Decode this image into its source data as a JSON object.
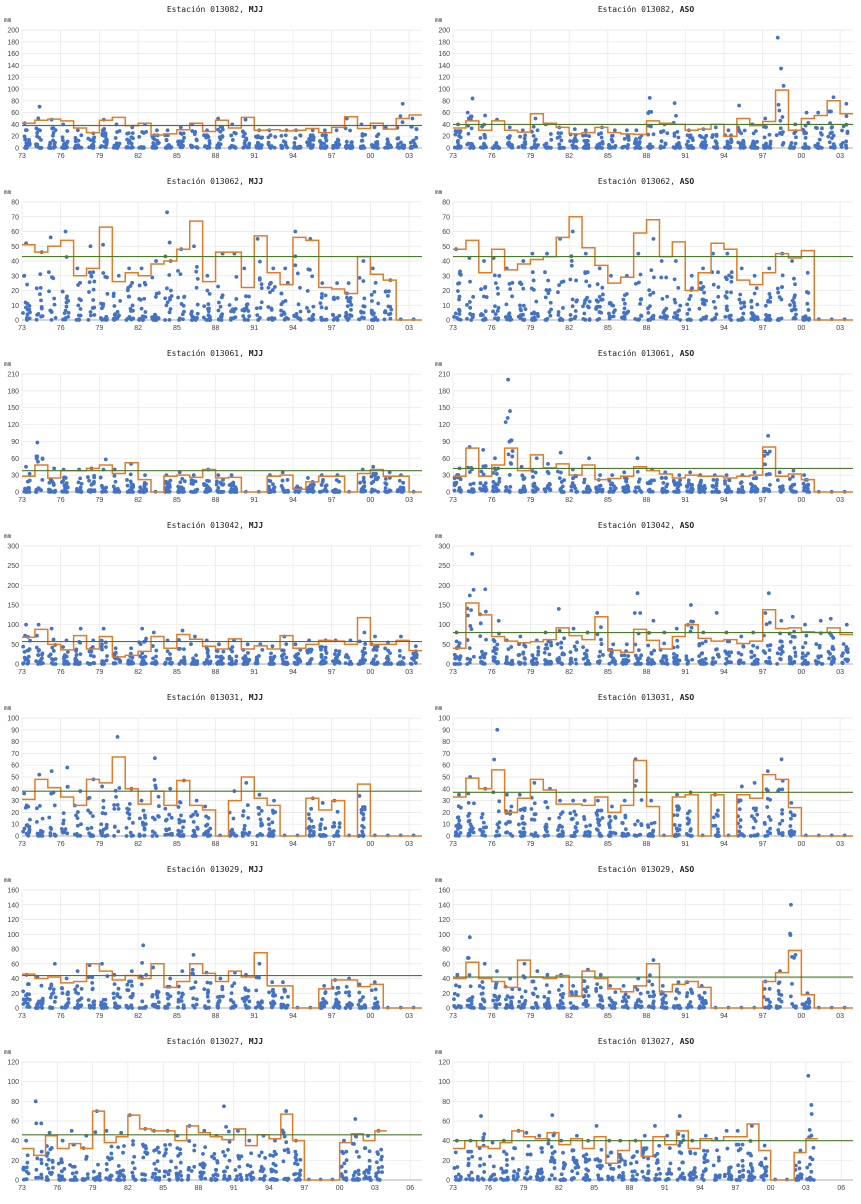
{
  "x_tick_labels": [
    "73",
    "76",
    "79",
    "82",
    "85",
    "88",
    "91",
    "94",
    "97",
    "00",
    "03"
  ],
  "x_tick_labels_extended": [
    "73",
    "76",
    "79",
    "82",
    "85",
    "88",
    "91",
    "94",
    "97",
    "00",
    "03",
    "06"
  ],
  "unit": "mm",
  "colors": {
    "points": "#4472c4",
    "step_line": "#e07b2a",
    "mean_line": "#4a7a2a",
    "grid": "#e6e6e6"
  },
  "chart_data": [
    {
      "type": "scatter",
      "title_prefix": "Estación 013082,",
      "title_season": "MJJ",
      "unit": "mm",
      "ylim": [
        0,
        200
      ],
      "yticks": [
        0,
        20,
        40,
        60,
        80,
        100,
        120,
        140,
        160,
        180,
        200
      ],
      "xlim": [
        1973,
        2004
      ],
      "mean": 38,
      "step_values": [
        42,
        47,
        49,
        46,
        34,
        26,
        47,
        52,
        38,
        42,
        22,
        24,
        31,
        42,
        28,
        47,
        34,
        52,
        30,
        31,
        29,
        30,
        33,
        26,
        35,
        53,
        33,
        42,
        32,
        50,
        56
      ],
      "max_points": [
        42,
        70,
        48,
        40,
        30,
        25,
        48,
        40,
        35,
        40,
        30,
        30,
        35,
        40,
        30,
        50,
        40,
        48,
        30,
        30,
        30,
        30,
        30,
        30,
        30,
        50,
        40,
        35,
        35,
        75,
        50
      ],
      "grid": true
    },
    {
      "type": "scatter",
      "title_prefix": "Estación 013082,",
      "title_season": "ASO",
      "unit": "mm",
      "ylim": [
        0,
        200
      ],
      "yticks": [
        0,
        20,
        40,
        60,
        80,
        100,
        120,
        140,
        160,
        180,
        200
      ],
      "xlim": [
        1973,
        2004
      ],
      "mean": 40,
      "step_values": [
        34,
        46,
        30,
        46,
        30,
        27,
        58,
        42,
        35,
        24,
        26,
        35,
        26,
        24,
        23,
        46,
        42,
        40,
        30,
        32,
        40,
        20,
        50,
        38,
        45,
        98,
        30,
        50,
        55,
        80,
        58
      ],
      "max_points": [
        40,
        84,
        55,
        48,
        35,
        30,
        50,
        40,
        35,
        32,
        30,
        35,
        30,
        30,
        30,
        85,
        40,
        76,
        30,
        32,
        35,
        30,
        72,
        40,
        50,
        187,
        40,
        60,
        60,
        86,
        75
      ],
      "grid": true
    },
    {
      "type": "scatter",
      "title_prefix": "Estación 013062,",
      "title_season": "MJJ",
      "unit": "mm",
      "ylim": [
        0,
        80
      ],
      "yticks": [
        0,
        10,
        20,
        30,
        40,
        50,
        60,
        70,
        80
      ],
      "xlim": [
        1973,
        2004
      ],
      "mean": 43,
      "step_values": [
        51,
        46,
        50,
        54,
        30,
        35,
        63,
        26,
        32,
        30,
        38,
        40,
        48,
        67,
        26,
        46,
        46,
        22,
        57,
        32,
        24,
        56,
        54,
        22,
        21,
        18,
        43,
        31,
        27,
        0,
        0
      ],
      "max_points": [
        52,
        46,
        56,
        60,
        35,
        50,
        51,
        30,
        35,
        35,
        40,
        73,
        48,
        50,
        30,
        45,
        45,
        35,
        55,
        35,
        35,
        60,
        55,
        25,
        25,
        25,
        40,
        35,
        27,
        1,
        1
      ],
      "grid": true
    },
    {
      "type": "scatter",
      "title_prefix": "Estación 013062,",
      "title_season": "ASO",
      "unit": "mm",
      "ylim": [
        0,
        80
      ],
      "yticks": [
        0,
        10,
        20,
        30,
        40,
        50,
        60,
        70,
        80
      ],
      "xlim": [
        1973,
        2004
      ],
      "mean": 43,
      "step_values": [
        48,
        54,
        32,
        48,
        34,
        38,
        41,
        43,
        56,
        70,
        49,
        37,
        25,
        29,
        59,
        68,
        43,
        53,
        20,
        32,
        52,
        48,
        27,
        24,
        32,
        45,
        42,
        47,
        0,
        0,
        0
      ],
      "max_points": [
        48,
        42,
        40,
        42,
        35,
        40,
        45,
        45,
        55,
        60,
        45,
        35,
        30,
        30,
        45,
        55,
        40,
        40,
        30,
        35,
        45,
        45,
        35,
        30,
        35,
        45,
        40,
        32,
        1,
        1,
        1
      ],
      "grid": true
    },
    {
      "type": "scatter",
      "title_prefix": "Estación 013061,",
      "title_season": "MJJ",
      "unit": "mm",
      "ylim": [
        0,
        210
      ],
      "yticks": [
        0,
        30,
        60,
        90,
        120,
        150,
        180,
        210
      ],
      "xlim": [
        1973,
        2004
      ],
      "mean": 38,
      "step_values": [
        28,
        48,
        25,
        38,
        38,
        42,
        48,
        33,
        52,
        22,
        0,
        28,
        30,
        26,
        40,
        25,
        26,
        0,
        0,
        28,
        30,
        5,
        18,
        28,
        28,
        0,
        33,
        40,
        28,
        28,
        0
      ],
      "max_points": [
        45,
        88,
        42,
        40,
        40,
        42,
        58,
        40,
        50,
        30,
        0,
        30,
        35,
        30,
        40,
        30,
        30,
        2,
        2,
        30,
        35,
        10,
        25,
        30,
        30,
        2,
        40,
        45,
        35,
        30,
        2
      ],
      "grid": true
    },
    {
      "type": "scatter",
      "title_prefix": "Estación 013061,",
      "title_season": "ASO",
      "unit": "mm",
      "ylim": [
        0,
        210
      ],
      "yticks": [
        0,
        30,
        60,
        90,
        120,
        150,
        180,
        210
      ],
      "xlim": [
        1973,
        2004
      ],
      "mean": 42,
      "step_values": [
        28,
        78,
        28,
        48,
        78,
        38,
        66,
        43,
        50,
        30,
        48,
        22,
        24,
        28,
        45,
        38,
        32,
        25,
        30,
        28,
        28,
        25,
        28,
        30,
        80,
        28,
        32,
        22,
        0,
        0,
        0
      ],
      "max_points": [
        42,
        80,
        75,
        60,
        200,
        45,
        60,
        50,
        70,
        40,
        60,
        30,
        30,
        35,
        60,
        40,
        35,
        30,
        35,
        30,
        30,
        30,
        30,
        35,
        100,
        35,
        38,
        30,
        2,
        2,
        2
      ],
      "grid": true
    },
    {
      "type": "scatter",
      "title_prefix": "Estación 013042,",
      "title_season": "MJJ",
      "unit": "mm",
      "ylim": [
        0,
        300
      ],
      "yticks": [
        0,
        50,
        100,
        150,
        200,
        250,
        300
      ],
      "xlim": [
        1973,
        2004
      ],
      "mean": 57,
      "step_values": [
        68,
        88,
        50,
        36,
        72,
        38,
        70,
        18,
        22,
        32,
        70,
        40,
        75,
        63,
        45,
        38,
        64,
        38,
        46,
        38,
        72,
        40,
        50,
        60,
        58,
        50,
        118,
        50,
        50,
        60,
        34
      ],
      "max_points": [
        100,
        100,
        90,
        60,
        90,
        60,
        90,
        40,
        40,
        90,
        80,
        60,
        85,
        70,
        60,
        50,
        60,
        50,
        50,
        45,
        70,
        50,
        60,
        60,
        60,
        60,
        80,
        70,
        55,
        70,
        45
      ],
      "grid": true
    },
    {
      "type": "scatter",
      "title_prefix": "Estación 013042,",
      "title_season": "ASO",
      "unit": "mm",
      "ylim": [
        0,
        300
      ],
      "yticks": [
        0,
        50,
        100,
        150,
        200,
        250,
        300
      ],
      "xlim": [
        1973,
        2004
      ],
      "mean": 80,
      "step_values": [
        40,
        155,
        125,
        70,
        58,
        54,
        57,
        62,
        92,
        72,
        62,
        120,
        35,
        30,
        88,
        60,
        38,
        70,
        100,
        65,
        58,
        62,
        52,
        58,
        138,
        90,
        92,
        82,
        80,
        92,
        75
      ],
      "max_points": [
        80,
        280,
        190,
        110,
        60,
        70,
        60,
        80,
        140,
        90,
        80,
        130,
        50,
        50,
        180,
        110,
        80,
        90,
        150,
        80,
        130,
        80,
        70,
        80,
        180,
        110,
        120,
        100,
        110,
        115,
        100
      ],
      "grid": true
    },
    {
      "type": "scatter",
      "title_prefix": "Estación 013031,",
      "title_season": "MJJ",
      "unit": "mm",
      "ylim": [
        0,
        100
      ],
      "yticks": [
        0,
        10,
        20,
        30,
        40,
        50,
        60,
        70,
        80,
        90,
        100
      ],
      "xlim": [
        1973,
        2004
      ],
      "mean": 38,
      "step_values": [
        31,
        48,
        41,
        33,
        26,
        48,
        45,
        67,
        40,
        27,
        38,
        26,
        47,
        26,
        22,
        0,
        30,
        50,
        32,
        26,
        0,
        0,
        32,
        22,
        30,
        0,
        44,
        0,
        0,
        0,
        0
      ],
      "max_points": [
        36,
        52,
        55,
        58,
        38,
        48,
        42,
        84,
        40,
        30,
        66,
        40,
        47,
        30,
        25,
        2,
        38,
        45,
        35,
        30,
        2,
        2,
        32,
        28,
        30,
        2,
        34,
        2,
        2,
        2,
        2
      ],
      "grid": true
    },
    {
      "type": "scatter",
      "title_prefix": "Estación 013031,",
      "title_season": "ASO",
      "unit": "mm",
      "ylim": [
        0,
        100
      ],
      "yticks": [
        0,
        10,
        20,
        30,
        40,
        50,
        60,
        70,
        80,
        90,
        100
      ],
      "xlim": [
        1973,
        2004
      ],
      "mean": 37,
      "step_values": [
        33,
        49,
        40,
        56,
        20,
        32,
        48,
        39,
        27,
        27,
        26,
        33,
        20,
        26,
        64,
        25,
        0,
        33,
        35,
        0,
        35,
        0,
        35,
        32,
        52,
        48,
        24,
        0,
        0,
        0,
        0
      ],
      "max_points": [
        35,
        50,
        40,
        90,
        35,
        35,
        45,
        40,
        30,
        30,
        30,
        30,
        25,
        30,
        65,
        30,
        2,
        35,
        37,
        2,
        35,
        2,
        42,
        45,
        55,
        65,
        28,
        2,
        2,
        2,
        2
      ],
      "grid": true
    },
    {
      "type": "scatter",
      "title_prefix": "Estación 013029,",
      "title_season": "MJJ",
      "unit": "mm",
      "ylim": [
        0,
        160
      ],
      "yticks": [
        0,
        20,
        40,
        60,
        80,
        100,
        120,
        140,
        160
      ],
      "xlim": [
        1973,
        2004
      ],
      "mean": 44,
      "step_values": [
        46,
        40,
        42,
        34,
        36,
        60,
        50,
        38,
        44,
        40,
        60,
        28,
        36,
        60,
        47,
        36,
        50,
        42,
        75,
        30,
        30,
        0,
        0,
        26,
        38,
        38,
        29,
        32,
        0,
        0,
        0
      ],
      "max_points": [
        45,
        42,
        60,
        40,
        50,
        58,
        60,
        45,
        50,
        85,
        55,
        40,
        50,
        72,
        48,
        40,
        48,
        45,
        60,
        35,
        35,
        2,
        2,
        30,
        38,
        40,
        32,
        35,
        2,
        2,
        2
      ],
      "grid": true
    },
    {
      "type": "scatter",
      "title_prefix": "Estación 013029,",
      "title_season": "ASO",
      "unit": "mm",
      "ylim": [
        0,
        160
      ],
      "yticks": [
        0,
        20,
        40,
        60,
        80,
        100,
        120,
        140,
        160
      ],
      "xlim": [
        1973,
        2004
      ],
      "mean": 42,
      "step_values": [
        40,
        62,
        40,
        36,
        28,
        65,
        42,
        40,
        44,
        16,
        50,
        40,
        26,
        22,
        30,
        60,
        22,
        32,
        36,
        28,
        0,
        0,
        0,
        0,
        36,
        48,
        78,
        18,
        0,
        0,
        0
      ],
      "max_points": [
        45,
        96,
        60,
        50,
        40,
        60,
        50,
        45,
        45,
        30,
        52,
        45,
        30,
        30,
        40,
        65,
        30,
        35,
        35,
        30,
        2,
        2,
        2,
        2,
        36,
        50,
        140,
        20,
        2,
        2,
        2
      ],
      "grid": true
    },
    {
      "type": "scatter",
      "title_prefix": "Estación 013027,",
      "title_season": "MJJ",
      "unit": "mm",
      "ylim": [
        0,
        120
      ],
      "yticks": [
        0,
        20,
        40,
        60,
        80,
        100,
        120
      ],
      "xlim": [
        1973,
        2007
      ],
      "mean": 46,
      "step_values": [
        32,
        25,
        45,
        32,
        37,
        32,
        70,
        38,
        44,
        66,
        52,
        50,
        50,
        40,
        55,
        48,
        44,
        41,
        52,
        35,
        46,
        42,
        67,
        40,
        0,
        0,
        0,
        38,
        47,
        40,
        50
      ],
      "max_points": [
        40,
        80,
        48,
        40,
        50,
        45,
        70,
        50,
        48,
        66,
        52,
        50,
        50,
        45,
        55,
        50,
        45,
        75,
        50,
        40,
        45,
        40,
        70,
        40,
        2,
        2,
        2,
        40,
        62,
        45,
        50
      ],
      "grid": true
    },
    {
      "type": "scatter",
      "title_prefix": "Estación 013027,",
      "title_season": "ASO",
      "unit": "mm",
      "ylim": [
        0,
        120
      ],
      "yticks": [
        0,
        20,
        40,
        60,
        80,
        100,
        120
      ],
      "xlim": [
        1973,
        2007
      ],
      "mean": 40,
      "step_values": [
        32,
        40,
        34,
        32,
        38,
        50,
        44,
        42,
        48,
        36,
        42,
        32,
        44,
        17,
        30,
        40,
        24,
        44,
        36,
        50,
        32,
        42,
        40,
        44,
        44,
        57,
        30,
        0,
        0,
        28,
        42
      ],
      "max_points": [
        40,
        40,
        65,
        38,
        40,
        50,
        48,
        45,
        66,
        40,
        45,
        40,
        55,
        40,
        40,
        40,
        45,
        55,
        45,
        65,
        40,
        45,
        42,
        50,
        50,
        55,
        35,
        2,
        2,
        30,
        106
      ],
      "grid": true
    }
  ]
}
